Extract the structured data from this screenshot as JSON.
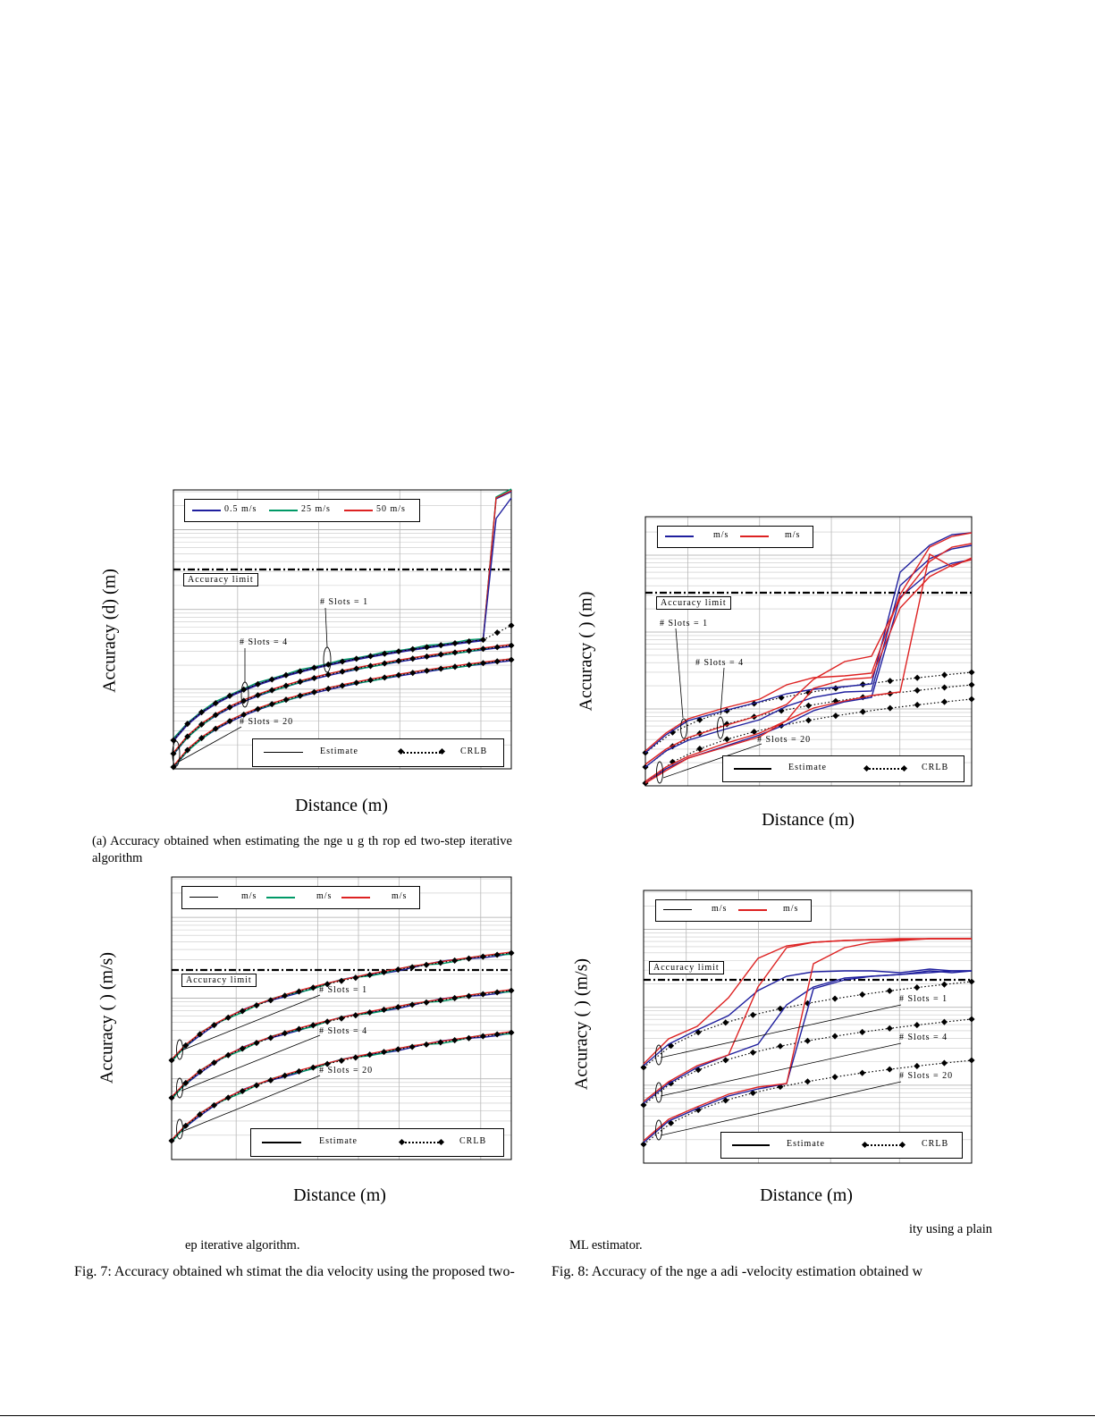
{
  "colors": {
    "blue": "#1f1f9e",
    "green": "#009966",
    "red": "#dd2222",
    "black": "#000000"
  },
  "panels": [
    {
      "id": "7a",
      "ylabel": "Accuracy (d) (m)",
      "xlabel": "Distance (m)",
      "legend_top": [
        "0.5 m/s",
        "25 m/s",
        "50 m/s"
      ],
      "legend_bottom": [
        "Estimate",
        "CRLB"
      ],
      "accuracy_limit_label": "Accuracy limit",
      "slot_labels": [
        "# Slots = 1",
        "# Slots = 4",
        "# Slots = 20"
      ],
      "caption": "(a) Accuracy obtained when estimating the nge u g th rop ed two-step iterative algorithm"
    },
    {
      "id": "8a",
      "ylabel": "Accuracy ( ) (m)",
      "xlabel": "Distance (m)",
      "legend_top": [
        "m/s",
        "m/s"
      ],
      "legend_bottom": [
        "Estimate",
        "CRLB"
      ],
      "accuracy_limit_label": "Accuracy limit",
      "slot_labels": [
        "# Slots = 1",
        "# Slots = 4",
        "# Slots = 20"
      ]
    },
    {
      "id": "7b",
      "ylabel": "Accuracy ( ) (m/s)",
      "xlabel": "Distance (m)",
      "legend_top": [
        "m/s",
        "m/s",
        "m/s"
      ],
      "legend_bottom": [
        "Estimate",
        "CRLB"
      ],
      "accuracy_limit_label": "Accuracy limit",
      "slot_labels": [
        "# Slots = 1",
        "# Slots = 4",
        "# Slots = 20"
      ],
      "caption": "ep iterative algorithm."
    },
    {
      "id": "8b",
      "ylabel": "Accuracy ( ) (m/s)",
      "xlabel": "Distance (m)",
      "legend_top": [
        "m/s",
        "m/s"
      ],
      "legend_bottom": [
        "Estimate",
        "CRLB"
      ],
      "accuracy_limit_label": "Accuracy limit",
      "slot_labels": [
        "# Slots = 1",
        "# Slots = 4",
        "# Slots = 20"
      ],
      "caption_right": "ity using a plain",
      "caption_left": "ML estimator."
    }
  ],
  "fig7_caption": "Fig. 7: Accuracy obtained wh stimat the dia velocity using the proposed two-",
  "fig8_caption": "Fig. 8: Accuracy of the nge a adi -velocity estimation obtained w"
}
